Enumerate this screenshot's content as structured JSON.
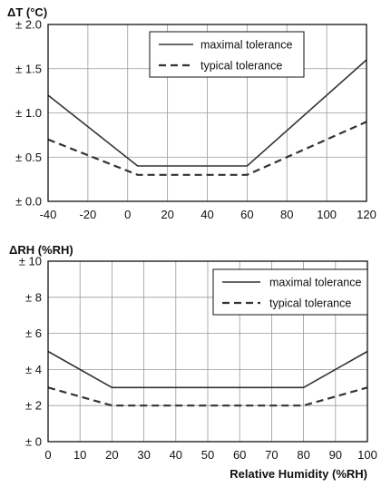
{
  "chart_data": [
    {
      "type": "line",
      "title": "",
      "ylabel": "ΔT (°C)",
      "xlabel": "",
      "xlim": [
        -40,
        120
      ],
      "ylim": [
        0,
        2
      ],
      "x_ticks": [
        -40,
        -20,
        0,
        20,
        40,
        60,
        80,
        100,
        120
      ],
      "x_tick_labels": [
        "-40",
        "-20",
        "0",
        "20",
        "40",
        "60",
        "80",
        "100",
        "120"
      ],
      "y_ticks": [
        0,
        0.5,
        1,
        1.5,
        2
      ],
      "y_tick_labels": [
        "± 0.0",
        "± 0.5",
        "± 1.0",
        "± 1.5",
        "± 2.0"
      ],
      "grid": true,
      "legend_position": "top-right",
      "series": [
        {
          "name": "maximal tolerance",
          "style": "solid",
          "color": "#333333",
          "points": [
            [
              -40,
              1.2
            ],
            [
              5,
              0.4
            ],
            [
              60,
              0.4
            ],
            [
              120,
              1.6
            ]
          ]
        },
        {
          "name": "typical tolerance",
          "style": "dashed",
          "color": "#333333",
          "points": [
            [
              -40,
              0.7
            ],
            [
              5,
              0.3
            ],
            [
              60,
              0.3
            ],
            [
              120,
              0.9
            ]
          ]
        }
      ]
    },
    {
      "type": "line",
      "title": "",
      "ylabel": "ΔRH (%RH)",
      "xlabel": "Relative Humidity (%RH)",
      "xlim": [
        0,
        100
      ],
      "ylim": [
        0,
        10
      ],
      "x_ticks": [
        0,
        10,
        20,
        30,
        40,
        50,
        60,
        70,
        80,
        90,
        100
      ],
      "x_tick_labels": [
        "0",
        "10",
        "20",
        "30",
        "40",
        "50",
        "60",
        "70",
        "80",
        "90",
        "100"
      ],
      "y_ticks": [
        0,
        2,
        4,
        6,
        8,
        10
      ],
      "y_tick_labels": [
        "± 0",
        "± 2",
        "± 4",
        "± 6",
        "± 8",
        "± 10"
      ],
      "grid": true,
      "legend_position": "top-right",
      "series": [
        {
          "name": "maximal tolerance",
          "style": "solid",
          "color": "#333333",
          "points": [
            [
              0,
              5
            ],
            [
              20,
              3
            ],
            [
              80,
              3
            ],
            [
              100,
              5
            ]
          ]
        },
        {
          "name": "typical tolerance",
          "style": "dashed",
          "color": "#333333",
          "points": [
            [
              0,
              3
            ],
            [
              20,
              2
            ],
            [
              80,
              2
            ],
            [
              100,
              3
            ]
          ]
        }
      ]
    }
  ]
}
